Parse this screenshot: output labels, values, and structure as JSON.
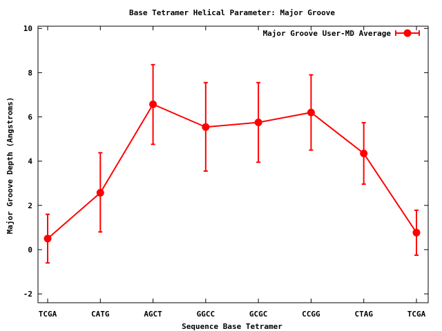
{
  "chart_data": {
    "type": "line",
    "title": "Base Tetramer Helical Parameter: Major Groove",
    "xlabel": "Sequence Base Tetramer",
    "ylabel": "Major Groove Depth (Angstroms)",
    "ylim": [
      -2.4,
      10.1
    ],
    "yticks": [
      -2,
      0,
      2,
      4,
      6,
      8,
      10
    ],
    "categories": [
      "TCGA",
      "CATG",
      "AGCT",
      "GGCC",
      "GCGC",
      "CCGG",
      "CTAG",
      "TCGA"
    ],
    "series": [
      {
        "name": "Major Groove User-MD Average",
        "color": "#ff0000",
        "marker": "circle",
        "values": [
          0.5,
          2.57,
          6.57,
          5.54,
          5.75,
          6.2,
          4.35,
          0.77
        ],
        "error_low": [
          -0.6,
          0.8,
          4.76,
          3.55,
          3.95,
          4.5,
          2.96,
          -0.25
        ],
        "error_high": [
          1.6,
          4.38,
          8.36,
          7.55,
          7.55,
          7.9,
          5.74,
          1.78
        ]
      }
    ],
    "grid": false,
    "legend_position": "top-right"
  }
}
